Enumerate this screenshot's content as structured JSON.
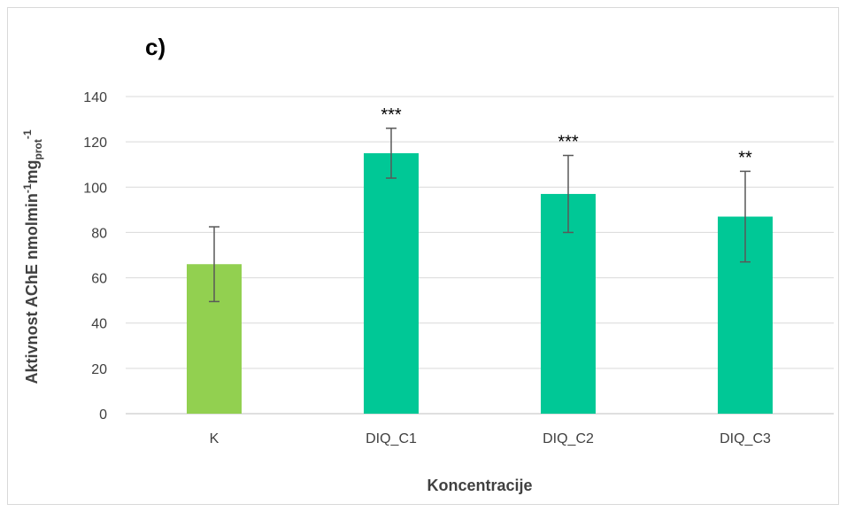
{
  "chart_data": {
    "type": "bar",
    "panel_label": "c)",
    "title": "",
    "xlabel": "Koncentracije",
    "ylabel": {
      "prefix": "Aktivnost AChE nmolmin",
      "sup1": "-1",
      "middle": "mg",
      "sub": "prot",
      "sup2": "-1"
    },
    "categories": [
      "K",
      "DIQ_C1",
      "DIQ_C2",
      "DIQ_C3"
    ],
    "values": [
      66,
      115,
      97,
      87
    ],
    "errors": [
      16.5,
      11,
      17,
      20
    ],
    "significance": [
      "",
      "***",
      "***",
      "**"
    ],
    "colors": [
      "#92d050",
      "#00c896",
      "#00c896",
      "#00c896"
    ],
    "ylim": [
      0,
      140
    ],
    "yticks": [
      0,
      20,
      40,
      60,
      80,
      100,
      120,
      140
    ],
    "grid": true,
    "legend": "none"
  }
}
